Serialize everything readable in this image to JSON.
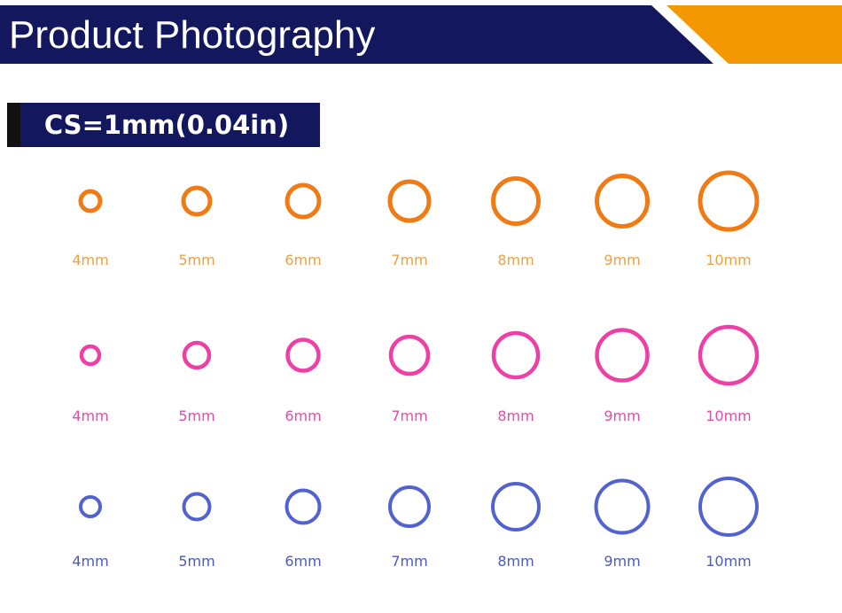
{
  "header": {
    "title": "Product Photography"
  },
  "badge": {
    "text": "CS=1mm(0.04in)"
  },
  "rows": [
    {
      "labels": [
        "4mm",
        "5mm",
        "6mm",
        "7mm",
        "8mm",
        "9mm",
        "10mm"
      ]
    },
    {
      "labels": [
        "4mm",
        "5mm",
        "6mm",
        "7mm",
        "8mm",
        "9mm",
        "10mm"
      ]
    },
    {
      "labels": [
        "4mm",
        "5mm",
        "6mm",
        "7mm",
        "8mm",
        "9mm",
        "10mm"
      ]
    }
  ]
}
